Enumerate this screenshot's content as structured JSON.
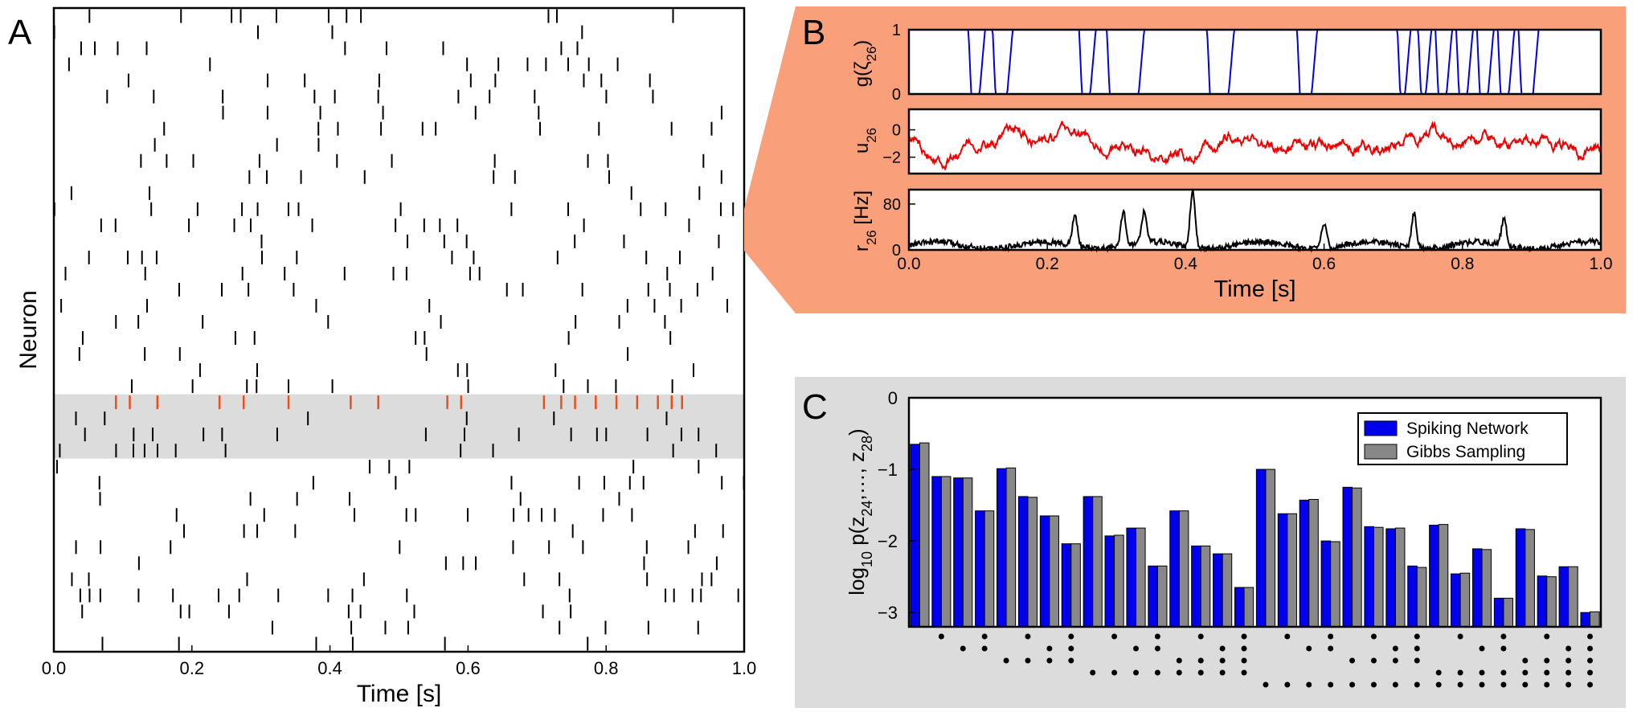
{
  "panels": {
    "a": {
      "letter": "A",
      "ylabel": "Neuron"
    },
    "b": {
      "letter": "B"
    },
    "c": {
      "letter": "C"
    }
  },
  "colors": {
    "raster_spike": "#000000",
    "raster_highlight": "#e8501c",
    "highlight_band": "#dcdcdc",
    "zoom_background": "#f9a07a",
    "panel_c_background": "#dcdcdc",
    "g_trace": "#0000ee",
    "u_trace": "#ee0000",
    "r_trace": "#000000",
    "spiking_bar": "#0000ee",
    "gibbs_bar": "#888888"
  },
  "chart_data": [
    {
      "type": "raster",
      "panel": "A",
      "xlabel": "Time [s]",
      "ylabel": "Neuron",
      "xlim": [
        0.0,
        1.0
      ],
      "xticks": [
        "0.0",
        "0.2",
        "0.4",
        "0.6",
        "0.8",
        "1.0"
      ],
      "n_neurons": 40,
      "highlight_rows": [
        24,
        28
      ],
      "highlight_neuron": 26,
      "highlight_spikes": [
        0.09,
        0.11,
        0.15,
        0.24,
        0.275,
        0.34,
        0.43,
        0.47,
        0.57,
        0.59,
        0.71,
        0.735,
        0.755,
        0.785,
        0.815,
        0.845,
        0.875,
        0.895,
        0.91
      ],
      "spike_rate_hz": 10
    },
    {
      "type": "line",
      "panel": "B",
      "subplots": [
        {
          "name": "g",
          "ylabel": "g(ζ26)",
          "ylim": [
            0,
            1
          ],
          "yticks": [
            "0",
            "1"
          ],
          "off_intervals": [
            [
              0.09,
              0.11
            ],
            [
              0.125,
              0.15
            ],
            [
              0.25,
              0.27
            ],
            [
              0.29,
              0.34
            ],
            [
              0.435,
              0.47
            ],
            [
              0.565,
              0.59
            ],
            [
              0.71,
              0.725
            ],
            [
              0.74,
              0.755
            ],
            [
              0.765,
              0.785
            ],
            [
              0.795,
              0.815
            ],
            [
              0.825,
              0.845
            ],
            [
              0.855,
              0.875
            ],
            [
              0.885,
              0.91
            ]
          ]
        },
        {
          "name": "u",
          "ylabel": "u26",
          "ylim": [
            -3.2,
            1.5
          ],
          "yticks": [
            "0",
            "−2"
          ],
          "approx_mean": -1.0,
          "approx_range": [
            -3.0,
            1.2
          ]
        },
        {
          "name": "r",
          "ylabel": "r26 [Hz]",
          "ylim": [
            0,
            105
          ],
          "yticks": [
            "0",
            "80"
          ],
          "peaks": [
            {
              "x": 0.24,
              "y": 55
            },
            {
              "x": 0.31,
              "y": 60
            },
            {
              "x": 0.34,
              "y": 55
            },
            {
              "x": 0.41,
              "y": 100
            },
            {
              "x": 0.6,
              "y": 45
            },
            {
              "x": 0.73,
              "y": 60
            },
            {
              "x": 0.86,
              "y": 45
            }
          ]
        }
      ],
      "xlabel": "Time [s]",
      "xlim": [
        0.0,
        1.0
      ],
      "xticks": [
        "0.0",
        "0.2",
        "0.4",
        "0.6",
        "0.8",
        "1.0"
      ]
    },
    {
      "type": "bar",
      "panel": "C",
      "ylabel": "log10 p(z24,…, z28)",
      "ylim": [
        -3.2,
        0
      ],
      "yticks": [
        "0",
        "−1",
        "−2",
        "−3"
      ],
      "legend_position": "top-right",
      "series": [
        {
          "name": "Spiking Network",
          "values": [
            -0.65,
            -1.1,
            -1.12,
            -1.58,
            -0.99,
            -1.38,
            -1.65,
            -2.04,
            -1.38,
            -1.93,
            -1.82,
            -2.35,
            -1.58,
            -2.07,
            -2.18,
            -2.65,
            -1.0,
            -1.62,
            -1.43,
            -2.0,
            -1.25,
            -1.8,
            -1.83,
            -2.35,
            -1.78,
            -2.46,
            -2.11,
            -2.8,
            -1.83,
            -2.49,
            -2.36,
            -3.0
          ]
        },
        {
          "name": "Gibbs Sampling",
          "values": [
            -0.63,
            -1.1,
            -1.12,
            -1.58,
            -0.98,
            -1.39,
            -1.65,
            -2.04,
            -1.38,
            -1.92,
            -1.82,
            -2.35,
            -1.58,
            -2.07,
            -2.18,
            -2.65,
            -1.0,
            -1.62,
            -1.42,
            -2.01,
            -1.26,
            -1.81,
            -1.82,
            -2.37,
            -1.77,
            -2.45,
            -2.12,
            -2.8,
            -1.84,
            -2.5,
            -2.36,
            -2.99
          ]
        }
      ],
      "states": [
        "00000",
        "00001",
        "00010",
        "00011",
        "00100",
        "00101",
        "00110",
        "00111",
        "01000",
        "01001",
        "01010",
        "01011",
        "01100",
        "01101",
        "01110",
        "01111",
        "10000",
        "10001",
        "10010",
        "10011",
        "10100",
        "10101",
        "10110",
        "10111",
        "11000",
        "11001",
        "11010",
        "11011",
        "11100",
        "11101",
        "11110",
        "11111"
      ]
    }
  ]
}
